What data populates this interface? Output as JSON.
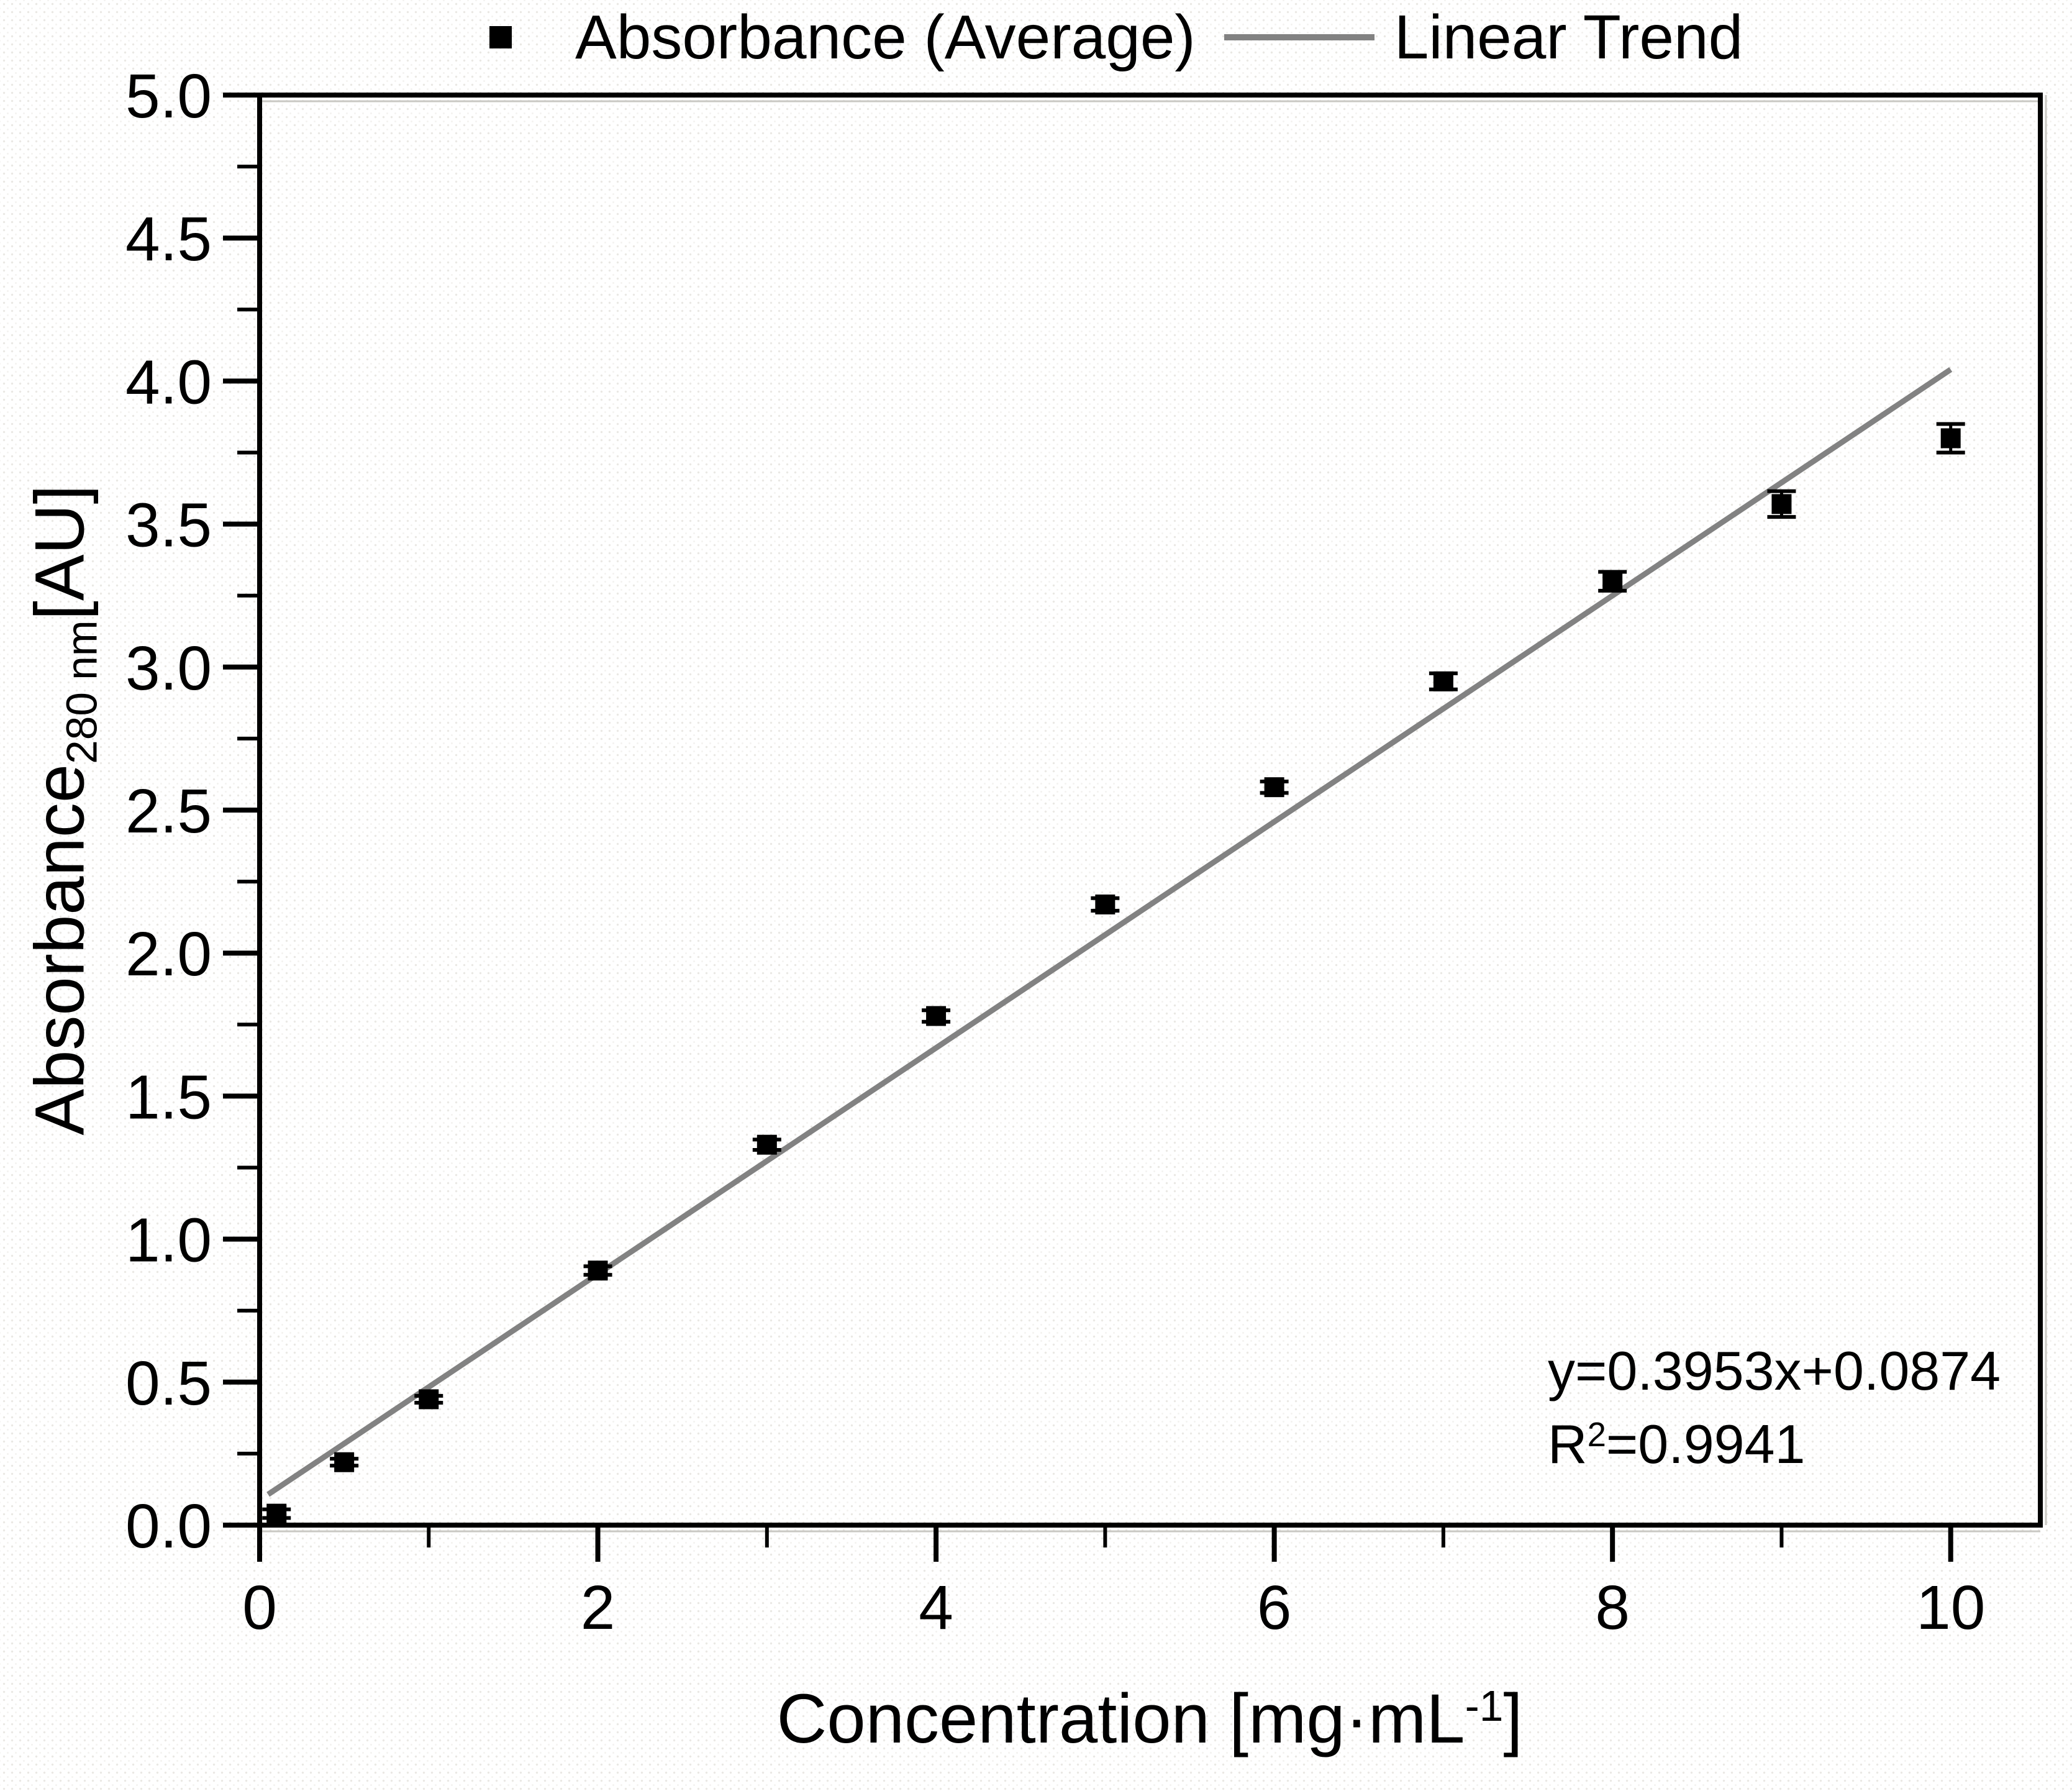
{
  "chart_data": {
    "type": "scatter",
    "title": "",
    "x_axis": {
      "label_main": "Concentration [mg·mL",
      "label_sup": "-1",
      "label_close": "]",
      "range": [
        0,
        10.53
      ],
      "ticks": [
        {
          "v": 0,
          "label": "0"
        },
        {
          "v": 2,
          "label": "2"
        },
        {
          "v": 4,
          "label": "4"
        },
        {
          "v": 6,
          "label": "6"
        },
        {
          "v": 8,
          "label": "8"
        },
        {
          "v": 10,
          "label": "10"
        }
      ],
      "minor_ticks": [
        1,
        3,
        5,
        7,
        9
      ]
    },
    "y_axis": {
      "label_main": "Absorbance",
      "label_sub": "280 nm",
      "label_unit": "[AU]",
      "range": [
        0,
        5
      ],
      "ticks": [
        {
          "v": 0.0,
          "label": "0.0"
        },
        {
          "v": 0.5,
          "label": "0.5"
        },
        {
          "v": 1.0,
          "label": "1.0"
        },
        {
          "v": 1.5,
          "label": "1.5"
        },
        {
          "v": 2.0,
          "label": "2.0"
        },
        {
          "v": 2.5,
          "label": "2.5"
        },
        {
          "v": 3.0,
          "label": "3.0"
        },
        {
          "v": 3.5,
          "label": "3.5"
        },
        {
          "v": 4.0,
          "label": "4.0"
        },
        {
          "v": 4.5,
          "label": "4.5"
        },
        {
          "v": 5.0,
          "label": "5.0"
        }
      ],
      "minor_ticks": [
        0.25,
        0.75,
        1.25,
        1.75,
        2.25,
        2.75,
        3.25,
        3.75,
        4.25,
        4.75
      ]
    },
    "series": [
      {
        "name": "Absorbance (Average)",
        "x": [
          0.1,
          0.5,
          1,
          2,
          3,
          4,
          5,
          6,
          7,
          8,
          9,
          10
        ],
        "y": [
          0.04,
          0.22,
          0.44,
          0.89,
          1.33,
          1.78,
          2.17,
          2.58,
          2.95,
          3.3,
          3.57,
          3.8
        ],
        "yerr": [
          0.015,
          0.012,
          0.012,
          0.015,
          0.018,
          0.02,
          0.022,
          0.02,
          0.028,
          0.033,
          0.045,
          0.05
        ]
      }
    ],
    "trend": {
      "name": "Linear Trend",
      "slope": 0.3953,
      "intercept": 0.0874,
      "x_start": 0.05,
      "x_end": 10.0
    },
    "annotation": {
      "line1": "y=0.3953x+0.0874",
      "r_base": "R",
      "r_sup": "2",
      "r_rest": "=0.9941"
    },
    "legend": [
      {
        "label": "Absorbance (Average)"
      },
      {
        "label": "Linear Trend"
      }
    ],
    "colors": {
      "marker": "#000000",
      "trend": "#828282",
      "axis": "#000000",
      "text": "#000000",
      "shadow": "#c9c8c3",
      "background": "#ffffff"
    },
    "grid": false,
    "legend_position": "top"
  }
}
